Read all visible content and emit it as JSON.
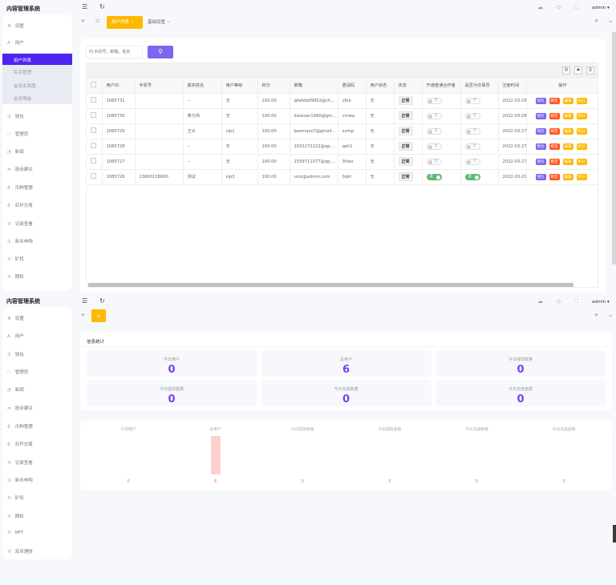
{
  "app_title": "内容管理系统",
  "header": {
    "user": "admin",
    "menu_icon": "hamburger-icon",
    "refresh_icon": "refresh-icon",
    "right_icons": [
      "theme-icon",
      "tag-icon",
      "fullscreen-icon"
    ]
  },
  "sidebar": {
    "items": [
      {
        "label": "设置",
        "icon": "⚙"
      },
      {
        "label": "用户",
        "icon": "A"
      },
      {
        "label": "钱包",
        "icon": "①"
      },
      {
        "label": "管理员",
        "icon": "◌"
      },
      {
        "label": "新闻",
        "icon": "◔"
      },
      {
        "label": "投诉建议",
        "icon": "⇔"
      },
      {
        "label": "币种管理",
        "icon": "♁"
      },
      {
        "label": "杠杆交易",
        "icon": "♁"
      },
      {
        "label": "记录查看",
        "icon": "©"
      },
      {
        "label": "新币申购",
        "icon": "①"
      },
      {
        "label": "矿机",
        "icon": "©"
      },
      {
        "label": "期权",
        "icon": "©"
      },
      {
        "label": "NFT",
        "icon": "©"
      },
      {
        "label": "双币理财",
        "icon": "©"
      }
    ],
    "user_sub": [
      "用户列表",
      "实名管理",
      "会员关系图",
      "会员等级"
    ]
  },
  "tabs": [
    {
      "label": "用户列表",
      "active": true
    },
    {
      "label": "基础设置",
      "active": false
    }
  ],
  "search": {
    "placeholder": "ID,手机号，邮箱，姓名"
  },
  "table": {
    "columns": [
      "用户ID",
      "手机号",
      "真实姓名",
      "用户等级",
      "积分",
      "邮箱",
      "邀请码",
      "用户状态",
      "状态",
      "开通普通合作者",
      "是否为交易员",
      "注册时间",
      "操作"
    ],
    "rows": [
      {
        "id": "1085731",
        "phone": "",
        "name": "--",
        "level": "无",
        "points": "100.00",
        "email": "qfwbtb09952@ch...",
        "code": "c6rx",
        "ustatus": "无",
        "status": "正常",
        "coop": false,
        "trader": false,
        "date": "2022-03-29"
      },
      {
        "id": "1085730",
        "phone": "",
        "name": "黄元伟",
        "level": "无",
        "points": "100.00",
        "email": "liwaisan1990@gm...",
        "code": "crnwa",
        "ustatus": "无",
        "status": "正常",
        "coop": false,
        "trader": false,
        "date": "2022-03-28"
      },
      {
        "id": "1085729",
        "phone": "",
        "name": "王大",
        "level": "vip1",
        "points": "100.00",
        "email": "baomaox7@gmail...",
        "code": "xvmp",
        "ustatus": "无",
        "status": "正常",
        "coop": false,
        "trader": false,
        "date": "2022-03-27"
      },
      {
        "id": "1085728",
        "phone": "",
        "name": "--",
        "level": "无",
        "points": "100.00",
        "email": "1932272222@qq....",
        "code": "qeh1",
        "ustatus": "无",
        "status": "正常",
        "coop": false,
        "trader": false,
        "date": "2022-03-27"
      },
      {
        "id": "1085727",
        "phone": "",
        "name": "--",
        "level": "无",
        "points": "100.00",
        "email": "1559711077@qq....",
        "code": "3hwo",
        "ustatus": "无",
        "status": "正常",
        "coop": false,
        "trader": false,
        "date": "2022-03-27"
      },
      {
        "id": "1085726",
        "phone": "13800138000",
        "name": "测试",
        "level": "vip3",
        "points": "100.00",
        "email": "urzz@admin.com",
        "code": "0qkt",
        "ustatus": "无",
        "status": "正常",
        "coop": true,
        "trader": true,
        "date": "2022-03-20"
      }
    ],
    "switch_off": "否",
    "switch_on": "是",
    "actions": [
      {
        "label": "钱包",
        "color": "#7b68ee"
      },
      {
        "label": "绑定",
        "color": "#ff5722"
      },
      {
        "label": "编辑",
        "color": "#ffb800"
      },
      {
        "label": "积分",
        "color": "#ffb800"
      }
    ]
  },
  "stats": {
    "title": "信息统计",
    "items": [
      {
        "label": "今日用户",
        "value": "0"
      },
      {
        "label": "总用户",
        "value": "6"
      },
      {
        "label": "今日提现数量",
        "value": "0"
      },
      {
        "label": "今日提现金额",
        "value": "0"
      },
      {
        "label": "今日充值数量",
        "value": "0"
      },
      {
        "label": "今日充值金额",
        "value": "0"
      }
    ]
  },
  "chart_data": {
    "type": "bar",
    "categories": [
      "今日用户",
      "总用户",
      "今日提现数量",
      "今日提现金额",
      "今日充值数量",
      "今日充值金额"
    ],
    "values": [
      0,
      6,
      0,
      0,
      0,
      0
    ],
    "color": "#ffd0d0"
  },
  "colors": {
    "accent": "#4f23f0",
    "tab_active": "#ffb800",
    "search_btn": "#7b68ee",
    "value": "#7b3ff2"
  }
}
